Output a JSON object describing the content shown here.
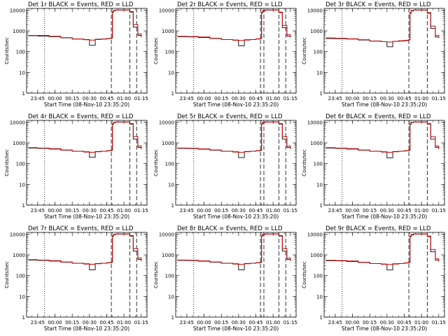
{
  "shared": {
    "xlabel": "Start Time (08-Nov-10 23:35:20)",
    "ylabel": "Counts/sec",
    "x_tick_labels": [
      "23:45",
      "00:00",
      "00:15",
      "00:30",
      "00:45",
      "01:00",
      "01:15"
    ],
    "y_tick_labels": [
      "1",
      "10",
      "100",
      "1000",
      "10000"
    ],
    "colors": {
      "events": "#000000",
      "lld": "#cc0000"
    }
  },
  "chart_data": [
    {
      "type": "line",
      "title": "Det 1r BLACK = Events, RED = LLD",
      "xlabel": "Start Time (08-Nov-10 23:35:20)",
      "ylabel": "Counts/sec",
      "y_scale": "log",
      "ylim": [
        1,
        12000
      ],
      "xlim": [
        "23:35:20",
        "01:20:00"
      ],
      "x": [
        "23:37",
        "23:45",
        "23:55",
        "00:05",
        "00:15",
        "00:25",
        "00:30",
        "00:35",
        "00:40",
        "00:45",
        "00:49",
        "00:50",
        "00:51",
        "00:53",
        "00:58",
        "01:00",
        "01:03",
        "01:05",
        "01:08",
        "01:12",
        "01:15"
      ],
      "series": [
        {
          "name": "Events",
          "values": [
            580,
            560,
            520,
            460,
            400,
            380,
            200,
            390,
            400,
            420,
            450,
            8000,
            9500,
            10000,
            10000,
            10000,
            10000,
            8000,
            1500,
            600,
            500
          ]
        },
        {
          "name": "LLD",
          "values": [
            600,
            590,
            540,
            470,
            400,
            370,
            360,
            380,
            400,
            430,
            470,
            8500,
            9800,
            10000,
            10000,
            10000,
            10000,
            8500,
            2000,
            700,
            520
          ]
        }
      ],
      "vlines_dashed": [
        "00:49",
        "01:05",
        "01:11"
      ],
      "vlines_dotted": [
        "23:51"
      ]
    },
    {
      "type": "line",
      "title": "Det 2r BLACK = Events, RED = LLD",
      "xlabel": "Start Time (08-Nov-10 23:35:20)",
      "ylabel": "Counts/sec",
      "y_scale": "log",
      "ylim": [
        1,
        12000
      ],
      "xlim": [
        "23:35:20",
        "01:20:00"
      ],
      "x": [
        "23:37",
        "23:45",
        "23:55",
        "00:05",
        "00:15",
        "00:25",
        "00:30",
        "00:35",
        "00:40",
        "00:45",
        "00:49",
        "00:50",
        "00:51",
        "00:53",
        "00:58",
        "01:00",
        "01:03",
        "01:05",
        "01:08",
        "01:12",
        "01:15"
      ],
      "series": [
        {
          "name": "Events",
          "values": [
            520,
            510,
            480,
            430,
            380,
            360,
            190,
            370,
            380,
            400,
            430,
            7500,
            9000,
            10000,
            10000,
            10000,
            10000,
            7500,
            1400,
            550,
            480
          ]
        },
        {
          "name": "LLD",
          "values": [
            540,
            530,
            500,
            440,
            380,
            350,
            340,
            360,
            380,
            410,
            450,
            8000,
            9500,
            10000,
            10000,
            10000,
            10000,
            8000,
            1800,
            650,
            500
          ]
        }
      ],
      "vlines_dashed": [
        "00:49",
        "00:52",
        "01:05",
        "01:11"
      ],
      "vlines_dotted": [
        "23:51"
      ]
    },
    {
      "type": "line",
      "title": "Det 3r BLACK = Events, RED = LLD",
      "xlabel": "Start Time (08-Nov-10 23:35:20)",
      "ylabel": "Counts/sec",
      "y_scale": "log",
      "ylim": [
        1,
        12000
      ],
      "xlim": [
        "23:35:20",
        "01:20:00"
      ],
      "x": [
        "23:37",
        "23:45",
        "23:55",
        "00:05",
        "00:15",
        "00:25",
        "00:30",
        "00:35",
        "00:40",
        "00:45",
        "00:49",
        "00:50",
        "00:51",
        "00:53",
        "00:58",
        "01:00",
        "01:03",
        "01:05",
        "01:08",
        "01:12",
        "01:15"
      ],
      "series": [
        {
          "name": "Events",
          "values": [
            430,
            420,
            400,
            360,
            320,
            300,
            170,
            310,
            320,
            340,
            370,
            7000,
            9000,
            10000,
            10000,
            10000,
            10000,
            7000,
            1300,
            500,
            450
          ]
        },
        {
          "name": "LLD",
          "values": [
            450,
            440,
            410,
            370,
            320,
            300,
            290,
            310,
            330,
            350,
            390,
            7500,
            9500,
            10000,
            10000,
            10000,
            10000,
            7500,
            1700,
            600,
            470
          ]
        }
      ],
      "vlines_dashed": [
        "00:49",
        "01:05"
      ],
      "vlines_dotted": [
        "23:51"
      ]
    },
    {
      "type": "line",
      "title": "Det 4r BLACK = Events, RED = LLD",
      "xlabel": "Start Time (08-Nov-10 23:35:20)",
      "ylabel": "Counts/sec",
      "y_scale": "log",
      "ylim": [
        1,
        12000
      ],
      "xlim": [
        "23:35:20",
        "01:20:00"
      ],
      "x": [
        "23:37",
        "23:45",
        "23:55",
        "00:05",
        "00:15",
        "00:25",
        "00:30",
        "00:35",
        "00:40",
        "00:45",
        "00:49",
        "00:50",
        "00:51",
        "00:53",
        "00:58",
        "01:00",
        "01:03",
        "01:05",
        "01:08",
        "01:12",
        "01:15"
      ],
      "series": [
        {
          "name": "Events",
          "values": [
            560,
            540,
            500,
            440,
            390,
            370,
            200,
            380,
            390,
            410,
            440,
            8000,
            9500,
            10000,
            10000,
            10000,
            10000,
            8000,
            1500,
            600,
            500
          ]
        },
        {
          "name": "LLD",
          "values": [
            580,
            560,
            520,
            450,
            390,
            360,
            350,
            370,
            390,
            420,
            460,
            8500,
            9800,
            10000,
            10000,
            10000,
            10000,
            8500,
            2000,
            700,
            520
          ]
        }
      ],
      "vlines_dashed": [
        "00:49",
        "01:05",
        "01:11"
      ],
      "vlines_dotted": [
        "23:51"
      ]
    },
    {
      "type": "line",
      "title": "Det 5r BLACK = Events, RED = LLD",
      "xlabel": "Start Time (08-Nov-10 23:35:20)",
      "ylabel": "Counts/sec",
      "y_scale": "log",
      "ylim": [
        1,
        12000
      ],
      "xlim": [
        "23:35:20",
        "01:20:00"
      ],
      "x": [
        "23:37",
        "23:45",
        "23:55",
        "00:05",
        "00:15",
        "00:25",
        "00:30",
        "00:35",
        "00:40",
        "00:45",
        "00:49",
        "00:50",
        "00:51",
        "00:53",
        "00:58",
        "01:00",
        "01:03",
        "01:05",
        "01:08",
        "01:12",
        "01:15"
      ],
      "series": [
        {
          "name": "Events",
          "values": [
            540,
            530,
            490,
            440,
            390,
            370,
            195,
            380,
            390,
            410,
            440,
            8000,
            9500,
            10000,
            10000,
            10000,
            10000,
            8000,
            1500,
            600,
            500
          ]
        },
        {
          "name": "LLD",
          "values": [
            560,
            550,
            510,
            450,
            390,
            360,
            350,
            370,
            390,
            420,
            460,
            8500,
            9800,
            10000,
            10000,
            10000,
            10000,
            8500,
            2000,
            700,
            520
          ]
        }
      ],
      "vlines_dashed": [
        "00:49",
        "00:52",
        "01:05",
        "01:11"
      ],
      "vlines_dotted": [
        "23:51"
      ]
    },
    {
      "type": "line",
      "title": "Det 6r BLACK = Events, RED = LLD",
      "xlabel": "Start Time (08-Nov-10 23:35:20)",
      "ylabel": "Counts/sec",
      "y_scale": "log",
      "ylim": [
        1,
        12000
      ],
      "xlim": [
        "23:35:20",
        "01:20:00"
      ],
      "x": [
        "23:37",
        "23:45",
        "23:55",
        "00:05",
        "00:15",
        "00:25",
        "00:30",
        "00:35",
        "00:40",
        "00:45",
        "00:49",
        "00:50",
        "00:51",
        "00:53",
        "00:58",
        "01:00",
        "01:03",
        "01:05",
        "01:08",
        "01:12",
        "01:15"
      ],
      "series": [
        {
          "name": "Events",
          "values": [
            560,
            540,
            500,
            440,
            390,
            370,
            190,
            380,
            390,
            410,
            440,
            8000,
            9500,
            10000,
            10000,
            10000,
            10000,
            8000,
            1500,
            600,
            500
          ]
        },
        {
          "name": "LLD",
          "values": [
            580,
            560,
            520,
            450,
            390,
            360,
            350,
            370,
            390,
            420,
            460,
            8500,
            9800,
            10000,
            10000,
            10000,
            10000,
            8500,
            2000,
            700,
            520
          ]
        }
      ],
      "vlines_dashed": [
        "00:49",
        "01:05"
      ],
      "vlines_dotted": [
        "23:51"
      ]
    },
    {
      "type": "line",
      "title": "Det 7r BLACK = Events, RED = LLD",
      "xlabel": "Start Time (08-Nov-10 23:35:20)",
      "ylabel": "Counts/sec",
      "y_scale": "log",
      "ylim": [
        1,
        12000
      ],
      "xlim": [
        "23:35:20",
        "01:20:00"
      ],
      "x": [
        "23:37",
        "23:45",
        "23:55",
        "00:05",
        "00:15",
        "00:25",
        "00:30",
        "00:35",
        "00:40",
        "00:45",
        "00:49",
        "00:50",
        "00:51",
        "00:53",
        "00:58",
        "01:00",
        "01:03",
        "01:05",
        "01:08",
        "01:12",
        "01:15"
      ],
      "series": [
        {
          "name": "Events",
          "values": [
            560,
            540,
            500,
            440,
            390,
            370,
            190,
            380,
            390,
            410,
            440,
            8000,
            9500,
            10000,
            10000,
            10000,
            10000,
            8000,
            1500,
            600,
            500
          ]
        },
        {
          "name": "LLD",
          "values": [
            580,
            560,
            520,
            450,
            390,
            360,
            350,
            370,
            390,
            420,
            460,
            8500,
            9800,
            10000,
            10000,
            10000,
            10000,
            8500,
            2000,
            700,
            520
          ]
        }
      ],
      "vlines_dashed": [
        "00:49",
        "01:05",
        "01:11"
      ],
      "vlines_dotted": [
        "23:51"
      ]
    },
    {
      "type": "line",
      "title": "Det 8r BLACK = Events, RED = LLD",
      "xlabel": "Start Time (08-Nov-10 23:35:20)",
      "ylabel": "Counts/sec",
      "y_scale": "log",
      "ylim": [
        1,
        12000
      ],
      "xlim": [
        "23:35:20",
        "01:20:00"
      ],
      "x": [
        "23:37",
        "23:45",
        "23:55",
        "00:05",
        "00:15",
        "00:25",
        "00:30",
        "00:35",
        "00:40",
        "00:45",
        "00:49",
        "00:50",
        "00:51",
        "00:53",
        "00:58",
        "01:00",
        "01:03",
        "01:05",
        "01:08",
        "01:12",
        "01:15"
      ],
      "series": [
        {
          "name": "Events",
          "values": [
            540,
            530,
            490,
            440,
            390,
            370,
            190,
            380,
            390,
            410,
            440,
            8000,
            9500,
            10000,
            10000,
            10000,
            10000,
            8000,
            1500,
            600,
            500
          ]
        },
        {
          "name": "LLD",
          "values": [
            560,
            550,
            510,
            450,
            390,
            360,
            350,
            370,
            390,
            420,
            460,
            8500,
            9800,
            10000,
            10000,
            10000,
            10000,
            8500,
            2000,
            700,
            520
          ]
        }
      ],
      "vlines_dashed": [
        "00:49",
        "00:52",
        "01:05",
        "01:11"
      ],
      "vlines_dotted": [
        "23:51"
      ]
    },
    {
      "type": "line",
      "title": "Det 9r BLACK = Events, RED = LLD",
      "xlabel": "Start Time (08-Nov-10 23:35:20)",
      "ylabel": "Counts/sec",
      "y_scale": "log",
      "ylim": [
        1,
        12000
      ],
      "xlim": [
        "23:35:20",
        "01:20:00"
      ],
      "x": [
        "23:37",
        "23:45",
        "23:55",
        "00:05",
        "00:15",
        "00:25",
        "00:30",
        "00:35",
        "00:40",
        "00:45",
        "00:49",
        "00:50",
        "00:51",
        "00:53",
        "00:58",
        "01:00",
        "01:03",
        "01:05",
        "01:08",
        "01:12",
        "01:15"
      ],
      "series": [
        {
          "name": "Events",
          "values": [
            520,
            510,
            480,
            430,
            380,
            360,
            185,
            370,
            380,
            400,
            430,
            7500,
            9000,
            10000,
            10000,
            10000,
            10000,
            7500,
            1400,
            550,
            480
          ]
        },
        {
          "name": "LLD",
          "values": [
            540,
            530,
            500,
            440,
            380,
            350,
            340,
            360,
            380,
            410,
            450,
            8000,
            9500,
            10000,
            10000,
            10000,
            10000,
            8000,
            1800,
            650,
            500
          ]
        }
      ],
      "vlines_dashed": [
        "00:49",
        "01:05"
      ],
      "vlines_dotted": [
        "23:51"
      ]
    }
  ]
}
